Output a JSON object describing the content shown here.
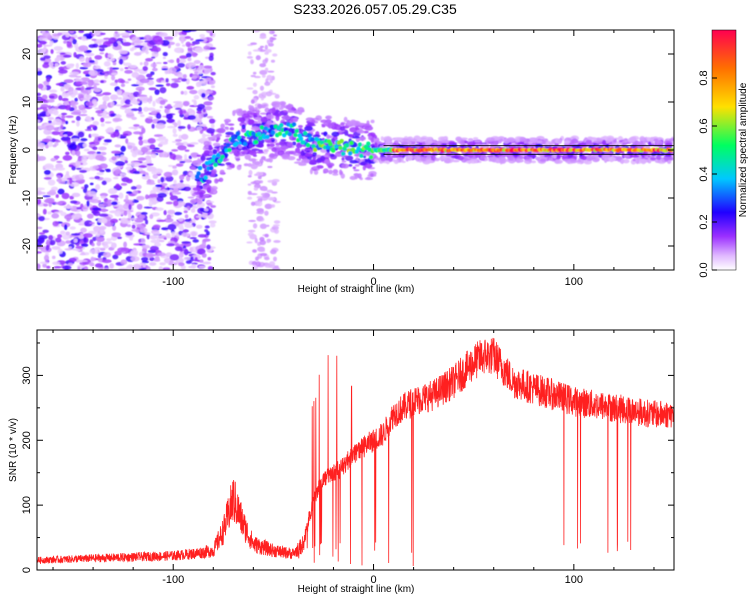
{
  "title": "S233.2026.057.05.29.C35",
  "chart_data": [
    {
      "type": "heatmap",
      "name": "spectrogram",
      "xlabel": "Height of straight line (km)",
      "ylabel": "Frequency (Hz)",
      "xlim": [
        -168,
        150
      ],
      "ylim": [
        -25,
        25
      ],
      "xticks": [
        -100,
        0,
        100
      ],
      "yticks": [
        -20,
        -10,
        0,
        10,
        20
      ],
      "colorbar": {
        "label": "Normalized spectral amplitude",
        "range": [
          0,
          1
        ],
        "ticks": [
          0.0,
          0.2,
          0.4,
          0.6,
          0.8
        ],
        "colors": [
          "#ffffff",
          "#e0b8ff",
          "#9b30ff",
          "#2000ff",
          "#00c8ff",
          "#00ff60",
          "#ffe000",
          "#ff7000",
          "#ff0050"
        ]
      },
      "ridge": [
        {
          "x": -85,
          "y": -5
        },
        {
          "x": -80,
          "y": -3
        },
        {
          "x": -70,
          "y": 2
        },
        {
          "x": -60,
          "y": 3
        },
        {
          "x": -50,
          "y": 4
        },
        {
          "x": -40,
          "y": 4
        },
        {
          "x": -30,
          "y": 1
        },
        {
          "x": -20,
          "y": 1
        },
        {
          "x": -10,
          "y": 0
        },
        {
          "x": 0,
          "y": 0
        },
        {
          "x": 50,
          "y": 0
        },
        {
          "x": 100,
          "y": 0
        },
        {
          "x": 148,
          "y": 0
        }
      ]
    },
    {
      "type": "line",
      "name": "snr",
      "xlabel": "Height of straight line (km)",
      "ylabel": "SNR (10 * v/v)",
      "xlim": [
        -168,
        150
      ],
      "ylim": [
        0,
        370
      ],
      "xticks": [
        -100,
        0,
        100
      ],
      "yticks": [
        0,
        100,
        200,
        300
      ],
      "color": "#ff2020",
      "x": [
        -168,
        -140,
        -120,
        -100,
        -90,
        -80,
        -75,
        -70,
        -65,
        -60,
        -50,
        -40,
        -35,
        -30,
        -25,
        -20,
        -15,
        -10,
        -5,
        0,
        5,
        10,
        15,
        20,
        30,
        40,
        50,
        55,
        60,
        65,
        70,
        80,
        90,
        100,
        110,
        120,
        130,
        140,
        150
      ],
      "y": [
        15,
        18,
        20,
        22,
        25,
        30,
        60,
        110,
        70,
        40,
        30,
        25,
        40,
        110,
        140,
        150,
        160,
        180,
        190,
        200,
        210,
        240,
        250,
        260,
        270,
        290,
        320,
        330,
        330,
        310,
        290,
        280,
        270,
        260,
        255,
        250,
        245,
        240,
        240
      ]
    }
  ]
}
